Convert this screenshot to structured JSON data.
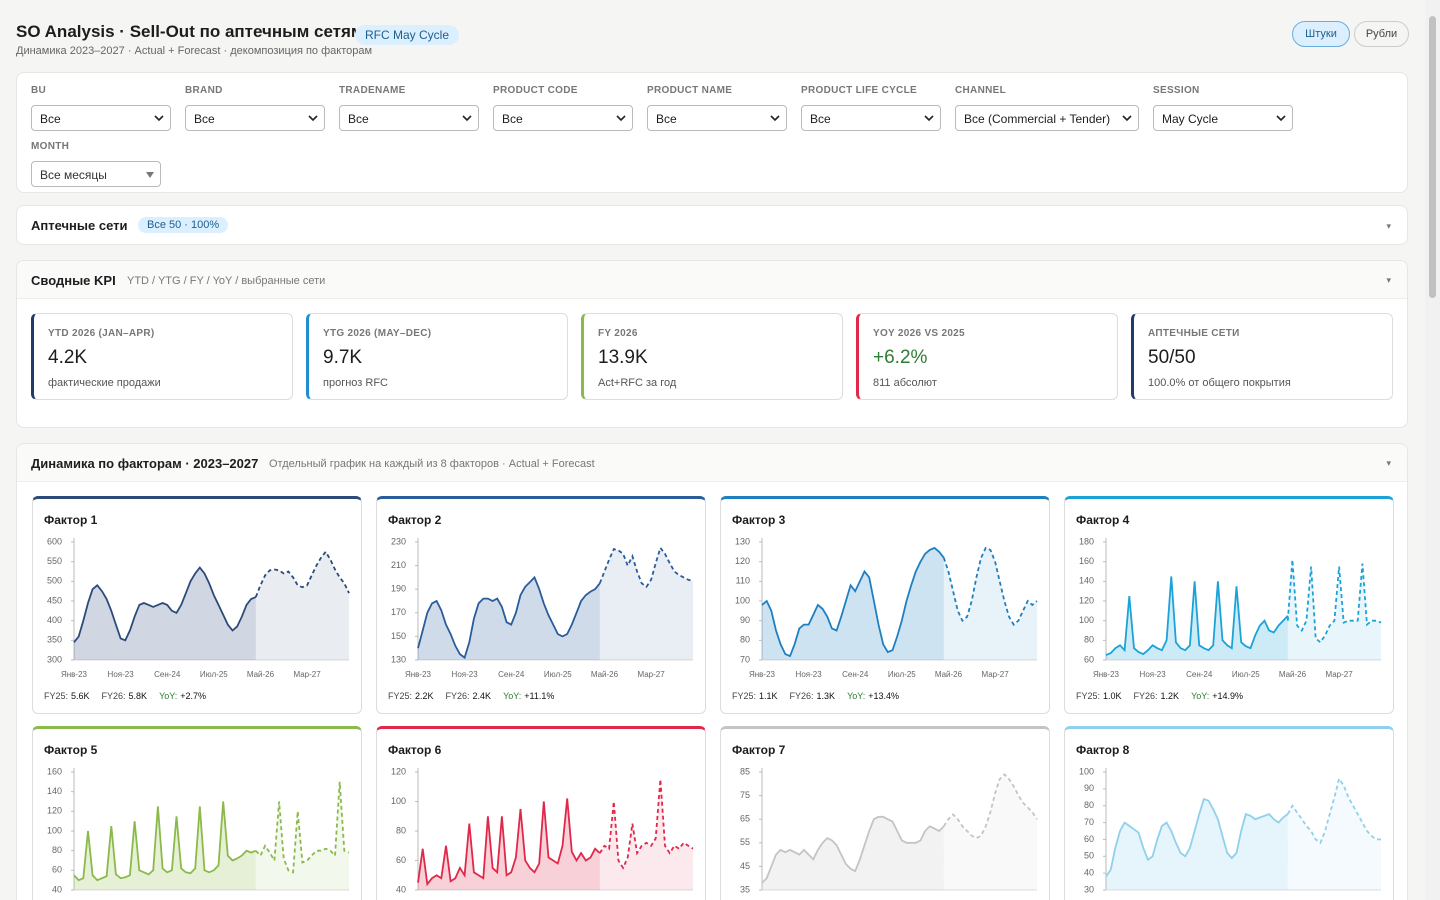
{
  "header": {
    "title": "SO Analysis · Sell-Out по аптечным сетям",
    "badge": "RFC May Cycle",
    "subtitle": "Динамика 2023–2027 · Actual + Forecast · декомпозиция по факторам",
    "units": [
      "Штуки",
      "Рубли"
    ]
  },
  "filters": [
    {
      "label": "BU",
      "value": "Все"
    },
    {
      "label": "BRAND",
      "value": "Все"
    },
    {
      "label": "TRADENAME",
      "value": "Все"
    },
    {
      "label": "PRODUCT CODE",
      "value": "Все"
    },
    {
      "label": "PRODUCT NAME",
      "value": "Все"
    },
    {
      "label": "PRODUCT LIFE CYCLE",
      "value": "Все"
    },
    {
      "label": "CHANNEL",
      "value": "Все (Commercial + Tender)"
    },
    {
      "label": "SESSION",
      "value": "May Cycle"
    },
    {
      "label": "MONTH",
      "value": "Все месяцы"
    }
  ],
  "networks": {
    "title": "Аптечные сети",
    "badge": "Все 50 · 100%"
  },
  "kpi": {
    "title": "Сводные KPI",
    "subtitle": "YTD / YTG / FY / YoY / выбранные сети",
    "cards": [
      {
        "label": "YTD 2026 (JAN–APR)",
        "value": "4.2K",
        "note": "фактические продажи",
        "color": "#1f3b6b"
      },
      {
        "label": "YTG 2026 (MAY–DEC)",
        "value": "9.7K",
        "note": "прогноз RFC",
        "color": "#1f8fd0"
      },
      {
        "label": "FY 2026",
        "value": "13.9K",
        "note": "Act+RFC за год",
        "color": "#8bb94a"
      },
      {
        "label": "YOY 2026 VS 2025",
        "value": "+6.2%",
        "note": "811 абсолют",
        "color": "#e0284a",
        "value_color": "#2e7d32"
      },
      {
        "label": "АПТЕЧНЫЕ СЕТИ",
        "value": "50/50",
        "note": "100.0% от общего покрытия",
        "color": "#1f3b6b"
      }
    ]
  },
  "dynamics": {
    "title": "Динамика по факторам · 2023–2027",
    "subtitle": "Отдельный график на каждый из 8 факторов · Actual + Forecast",
    "x_labels": [
      "Янв-23",
      null,
      null,
      null,
      null,
      null,
      null,
      null,
      null,
      null,
      "Ноя-23",
      null,
      null,
      null,
      null,
      null,
      null,
      null,
      null,
      null,
      "Сен-24",
      null,
      null,
      null,
      null,
      null,
      null,
      null,
      null,
      null,
      "Июл-25",
      null,
      null,
      null,
      null,
      null,
      null,
      null,
      null,
      null,
      "Май-26",
      null,
      null,
      null,
      null,
      null,
      null,
      null,
      null,
      null,
      "Мар-27",
      null,
      null,
      null,
      null,
      null,
      null,
      null,
      null,
      null
    ],
    "charts": [
      {
        "title": "Фактор 1",
        "color": "#2c4a7a",
        "ylim": [
          300,
          600
        ],
        "yticks": [
          300,
          350,
          400,
          450,
          500,
          550,
          600
        ],
        "actual": [
          345,
          360,
          400,
          445,
          480,
          490,
          475,
          455,
          425,
          390,
          355,
          350,
          375,
          410,
          440,
          445,
          440,
          435,
          440,
          445,
          440,
          425,
          420,
          440,
          470,
          500,
          520,
          535,
          520,
          495,
          465,
          440,
          415,
          390,
          375,
          385,
          410,
          440,
          455,
          460
        ],
        "forecast": [
          460,
          490,
          515,
          528,
          530,
          528,
          520,
          525,
          510,
          490,
          485,
          490,
          515,
          540,
          560,
          575,
          555,
          530,
          510,
          495,
          470
        ],
        "footer": [
          {
            "label": "FY25:",
            "value": "5.6K"
          },
          {
            "label": "FY26:",
            "value": "5.8K"
          },
          {
            "label": "YoY:",
            "value": "+2.7%",
            "label_color": "#2e7d32"
          }
        ]
      },
      {
        "title": "Фактор 2",
        "color": "#2b5c9a",
        "ylim": [
          130,
          230
        ],
        "yticks": [
          130,
          150,
          170,
          190,
          210,
          230
        ],
        "actual": [
          140,
          155,
          170,
          178,
          180,
          172,
          160,
          152,
          142,
          135,
          132,
          145,
          165,
          178,
          182,
          182,
          180,
          182,
          175,
          162,
          160,
          170,
          185,
          192,
          196,
          200,
          190,
          178,
          168,
          160,
          152,
          150,
          152,
          160,
          170,
          180,
          185,
          188,
          190,
          195
        ],
        "forecast": [
          195,
          205,
          215,
          224,
          223,
          220,
          210,
          218,
          205,
          195,
          192,
          198,
          212,
          225,
          220,
          212,
          205,
          202,
          200,
          198,
          197
        ],
        "footer": [
          {
            "label": "FY25:",
            "value": "2.2K"
          },
          {
            "label": "FY26:",
            "value": "2.4K"
          },
          {
            "label": "YoY:",
            "value": "+11.1%",
            "label_color": "#2e7d32"
          }
        ]
      },
      {
        "title": "Фактор 3",
        "color": "#1f7fc0",
        "ylim": [
          70,
          130
        ],
        "yticks": [
          70,
          80,
          90,
          100,
          110,
          120,
          130
        ],
        "actual": [
          98,
          100,
          95,
          85,
          78,
          73,
          72,
          78,
          86,
          88,
          88,
          93,
          98,
          96,
          92,
          86,
          85,
          92,
          100,
          108,
          105,
          110,
          115,
          112,
          100,
          88,
          78,
          74,
          75,
          82,
          90,
          100,
          108,
          115,
          120,
          124,
          126,
          127,
          125,
          122
        ],
        "forecast": [
          122,
          115,
          105,
          95,
          90,
          92,
          100,
          112,
          122,
          127,
          126,
          120,
          110,
          100,
          92,
          88,
          90,
          95,
          100,
          98,
          100
        ],
        "footer": [
          {
            "label": "FY25:",
            "value": "1.1K"
          },
          {
            "label": "FY26:",
            "value": "1.3K"
          },
          {
            "label": "YoY:",
            "value": "+13.4%",
            "label_color": "#2e7d32"
          }
        ]
      },
      {
        "title": "Фактор 4",
        "color": "#1ba3d8",
        "ylim": [
          60,
          180
        ],
        "yticks": [
          60,
          80,
          100,
          120,
          140,
          160,
          180
        ],
        "actual": [
          65,
          67,
          72,
          75,
          70,
          125,
          72,
          68,
          66,
          70,
          75,
          72,
          70,
          80,
          145,
          78,
          72,
          70,
          75,
          140,
          75,
          72,
          70,
          75,
          140,
          80,
          75,
          72,
          135,
          78,
          74,
          72,
          85,
          95,
          100,
          90,
          88,
          95,
          100,
          105
        ],
        "forecast": [
          100,
          162,
          95,
          90,
          100,
          155,
          82,
          78,
          85,
          95,
          100,
          155,
          98,
          100,
          100,
          100,
          158,
          96,
          100,
          100,
          98
        ],
        "footer": [
          {
            "label": "FY25:",
            "value": "1.0K"
          },
          {
            "label": "FY26:",
            "value": "1.2K"
          },
          {
            "label": "YoY:",
            "value": "+14.9%",
            "label_color": "#2e7d32"
          }
        ]
      },
      {
        "title": "Фактор 5",
        "color": "#8bb94a",
        "ylim": [
          40,
          160
        ],
        "yticks": [
          40,
          60,
          80,
          100,
          120,
          140,
          160
        ],
        "actual": [
          55,
          50,
          52,
          100,
          55,
          50,
          52,
          54,
          105,
          56,
          52,
          53,
          55,
          110,
          60,
          58,
          56,
          60,
          125,
          62,
          58,
          60,
          115,
          62,
          58,
          57,
          62,
          125,
          60,
          58,
          60,
          65,
          130,
          75,
          70,
          72,
          75,
          80,
          78,
          80
        ],
        "forecast": [
          80,
          75,
          85,
          78,
          70,
          130,
          72,
          60,
          58,
          120,
          68,
          70,
          75,
          80,
          80,
          82,
          80,
          75,
          150,
          80,
          78
        ]
      },
      {
        "title": "Фактор 6",
        "color": "#e0284a",
        "ylim": [
          40,
          120
        ],
        "yticks": [
          40,
          60,
          80,
          100,
          120
        ],
        "actual": [
          45,
          68,
          44,
          48,
          50,
          48,
          70,
          46,
          48,
          55,
          50,
          85,
          52,
          50,
          48,
          90,
          55,
          52,
          90,
          50,
          52,
          62,
          95,
          60,
          55,
          52,
          58,
          100,
          62,
          60,
          58,
          70,
          102,
          66,
          60,
          65,
          60,
          62,
          68,
          65
        ],
        "forecast": [
          65,
          70,
          68,
          100,
          60,
          55,
          62,
          85,
          65,
          70,
          72,
          70,
          75,
          115,
          70,
          65,
          70,
          68,
          72,
          70,
          68
        ]
      },
      {
        "title": "Фактор 7",
        "color": "#c4c4c4",
        "ylim": [
          35,
          85
        ],
        "yticks": [
          35,
          45,
          55,
          65,
          75,
          85
        ],
        "actual": [
          38,
          40,
          45,
          50,
          52,
          51,
          52,
          51,
          50,
          52,
          50,
          48,
          52,
          55,
          57,
          56,
          54,
          50,
          46,
          44,
          43,
          48,
          54,
          60,
          65,
          66,
          66,
          65,
          64,
          60,
          56,
          55,
          55,
          55,
          56,
          60,
          62,
          61,
          60,
          62
        ],
        "forecast": [
          62,
          65,
          67,
          65,
          62,
          60,
          58,
          57,
          58,
          62,
          68,
          76,
          82,
          84,
          82,
          79,
          75,
          72,
          70,
          68,
          65
        ]
      },
      {
        "title": "Фактор 8",
        "color": "#8fd0ec",
        "ylim": [
          30,
          100
        ],
        "yticks": [
          30,
          40,
          50,
          60,
          70,
          80,
          90,
          100
        ],
        "actual": [
          38,
          42,
          55,
          65,
          70,
          68,
          66,
          64,
          55,
          48,
          50,
          60,
          68,
          70,
          65,
          58,
          52,
          50,
          55,
          65,
          75,
          84,
          83,
          78,
          72,
          62,
          52,
          49,
          52,
          65,
          75,
          74,
          72,
          73,
          74,
          75,
          72,
          70,
          73,
          75
        ],
        "forecast": [
          75,
          80,
          76,
          72,
          68,
          65,
          60,
          58,
          65,
          75,
          85,
          96,
          92,
          85,
          80,
          75,
          70,
          65,
          62,
          60,
          60
        ]
      }
    ]
  }
}
